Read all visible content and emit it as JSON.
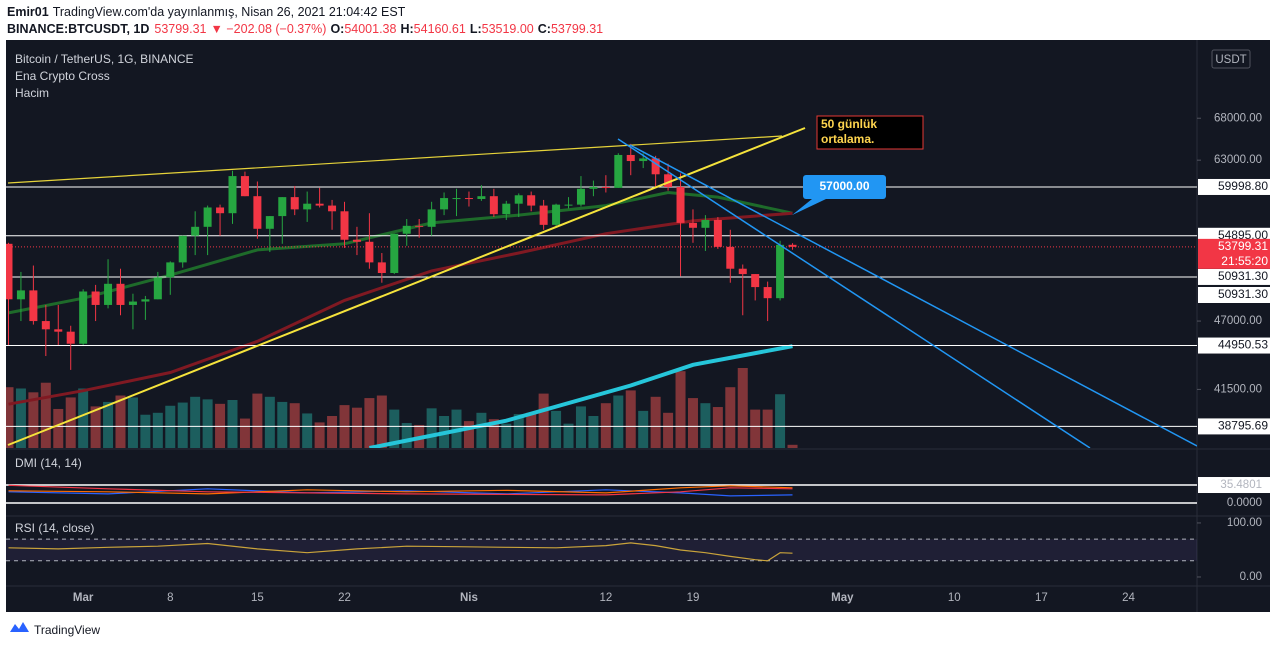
{
  "header": {
    "author": "Emir01",
    "published": "TradingView.com'da yayınlanmış, Nisan 26, 2021 21:04:42 EST",
    "symbol": "BINANCE:BTCUSDT, 1D",
    "last": "53799.31",
    "change": "▼ −202.08 (−0.37%)",
    "ohlc": [
      {
        "label": "O:",
        "value": "54001.38"
      },
      {
        "label": "H:",
        "value": "54160.61"
      },
      {
        "label": "L:",
        "value": "53519.00"
      },
      {
        "label": "C:",
        "value": "53799.31"
      }
    ]
  },
  "footer": {
    "brand": "TradingView"
  },
  "chart_data": [
    {
      "type": "candlestick",
      "title": "Bitcoin / TetherUS, 1G, BINANCE",
      "indicators": [
        "Ena Crypto Cross",
        "Hacim"
      ],
      "currency": "USDT",
      "up_color": "#26a641",
      "down_color": "#f23645",
      "log_scale": true,
      "xlim": [
        -0.2,
        95.5
      ],
      "xticks": [
        {
          "value": 6,
          "label": "Mar"
        },
        {
          "value": 13,
          "label": "8"
        },
        {
          "value": 20,
          "label": "15"
        },
        {
          "value": 27,
          "label": "22"
        },
        {
          "value": 37,
          "label": "Nis"
        },
        {
          "value": 48,
          "label": "12"
        },
        {
          "value": 55,
          "label": "19"
        },
        {
          "value": 67,
          "label": "May"
        },
        {
          "value": 76,
          "label": "10"
        },
        {
          "value": 83,
          "label": "17"
        },
        {
          "value": 90,
          "label": "24"
        }
      ],
      "ylim": [
        37300,
        77700
      ],
      "yticks": [
        {
          "value": 68000,
          "label": "68000.00"
        },
        {
          "value": 63000,
          "label": "63000.00"
        },
        {
          "value": 47000,
          "label": "47000.00"
        },
        {
          "value": 41500,
          "label": "41500.00"
        }
      ],
      "open": [
        54100,
        48900,
        49700,
        47000,
        46300,
        46100,
        45100,
        49600,
        48400,
        50300,
        48400,
        48700,
        48900,
        50900,
        52300,
        54900,
        55800,
        57800,
        57200,
        61200,
        59000,
        55600,
        56900,
        58900,
        57600,
        58200,
        58000,
        57400,
        54500,
        54300,
        52300,
        51300,
        55100,
        55900,
        55800,
        57600,
        58800,
        58800,
        58700,
        59000,
        57100,
        58200,
        59100,
        58000,
        56000,
        58100,
        58100,
        59800,
        60000,
        59900,
        63600,
        62900,
        63200,
        61400,
        60000,
        56200,
        55700,
        56500,
        53800,
        51700,
        51200,
        50000,
        49000,
        54001.38
      ],
      "high": [
        54200,
        51400,
        52000,
        48400,
        48400,
        46600,
        49800,
        50200,
        52600,
        51700,
        49400,
        49200,
        51400,
        52400,
        54900,
        57400,
        58000,
        58100,
        61800,
        61700,
        60600,
        56900,
        58900,
        60100,
        59500,
        59900,
        58600,
        58400,
        55800,
        57200,
        53200,
        55100,
        56600,
        56600,
        58400,
        59400,
        59800,
        59500,
        60200,
        59800,
        58500,
        59300,
        59500,
        58600,
        58200,
        58900,
        61200,
        60700,
        61300,
        63800,
        64900,
        63800,
        63500,
        62600,
        61500,
        57600,
        57000,
        56800,
        55500,
        52100,
        51200,
        50500,
        54400,
        54160.61
      ],
      "low": [
        45000,
        47000,
        46700,
        44100,
        45000,
        43000,
        45000,
        47000,
        48100,
        47500,
        46300,
        47100,
        48900,
        49300,
        51800,
        53000,
        53000,
        54900,
        56100,
        59000,
        54600,
        53300,
        54100,
        57000,
        56300,
        57800,
        55500,
        53700,
        53000,
        51700,
        50400,
        51200,
        53900,
        54700,
        54900,
        57000,
        56900,
        57900,
        58500,
        56800,
        56500,
        56800,
        57400,
        55500,
        55800,
        57700,
        57900,
        59000,
        59400,
        59900,
        61300,
        62100,
        60000,
        59600,
        51000,
        54200,
        53400,
        53600,
        50400,
        47500,
        48800,
        47000,
        48800,
        53519
      ],
      "close": [
        48900,
        49700,
        47000,
        46300,
        46100,
        45100,
        49600,
        48400,
        50300,
        48400,
        48700,
        48900,
        50900,
        52300,
        54900,
        55800,
        57800,
        57200,
        61200,
        59000,
        55600,
        56900,
        58900,
        57600,
        58200,
        58000,
        57400,
        54500,
        54300,
        52300,
        51300,
        55100,
        55900,
        55800,
        57600,
        58800,
        58800,
        58700,
        59000,
        57100,
        58200,
        59100,
        58000,
        56000,
        58100,
        58100,
        59800,
        60000,
        59900,
        63600,
        62900,
        63200,
        61400,
        60000,
        56200,
        55700,
        56500,
        53800,
        51700,
        51200,
        50000,
        49000,
        54000,
        53799.31
      ],
      "volume": {
        "up_color": "#26a69a",
        "down_color": "#ef5350",
        "values": [
          95,
          93,
          87,
          102,
          61,
          79,
          93,
          65,
          72,
          82,
          79,
          52,
          55,
          66,
          71,
          80,
          76,
          69,
          75,
          46,
          85,
          80,
          72,
          70,
          54,
          40,
          50,
          67,
          63,
          78,
          82,
          60,
          39,
          36,
          62,
          50,
          60,
          42,
          55,
          45,
          38,
          53,
          55,
          85,
          58,
          38,
          65,
          50,
          70,
          82,
          90,
          58,
          80,
          55,
          120,
          78,
          70,
          64,
          95,
          125,
          60,
          60,
          84,
          5
        ]
      },
      "moving_averages": [
        {
          "color": "#1e6b2a",
          "x": [
            0,
            6,
            13,
            20,
            27,
            34,
            41,
            48,
            53,
            57,
            63
          ],
          "values": [
            47700,
            49000,
            51100,
            53500,
            54100,
            56200,
            57000,
            58000,
            59400,
            58900,
            57200
          ]
        },
        {
          "color": "#801922",
          "x": [
            0,
            6,
            13,
            20,
            27,
            34,
            41,
            48,
            55,
            63
          ],
          "values": [
            40400,
            41400,
            42800,
            45300,
            48800,
            51500,
            53200,
            55100,
            56400,
            57200
          ]
        },
        {
          "color": "#26c6da",
          "x": [
            29,
            40,
            50,
            55,
            63
          ],
          "values": [
            37300,
            39200,
            41800,
            43400,
            44900
          ]
        }
      ],
      "levels": [
        {
          "value": 59998.8,
          "label": "59998.80"
        },
        {
          "value": 54895,
          "label": "54895.00"
        },
        {
          "value": 50931.3,
          "label": "50931.30"
        },
        {
          "value": 44950.53,
          "label": "44950.53"
        },
        {
          "value": 38795.69,
          "label": "38795.69"
        }
      ],
      "price_tags": [
        "50931.30"
      ],
      "last_price": {
        "value": 53799.31,
        "label": "53799.31",
        "countdown": "21:55:20"
      },
      "annotations": [
        {
          "lines": [
            "50 günlük",
            "ortalama."
          ]
        },
        {
          "value": 57000,
          "label": "57000.00"
        }
      ]
    },
    {
      "type": "line",
      "title": "DMI (14, 14)",
      "ylim": [
        -21.7,
        100.6
      ],
      "yticks": [
        {
          "value": 35.4801,
          "label": "35.4801"
        },
        {
          "value": 0,
          "label": "0.0000"
        }
      ],
      "x": [
        0,
        8,
        16,
        24,
        32,
        40,
        48,
        54,
        58,
        63
      ],
      "series": [
        {
          "color": "#2962ff",
          "values": [
            22,
            18,
            28,
            20,
            24,
            18,
            26,
            20,
            14,
            16
          ]
        },
        {
          "color": "#ff6d00",
          "values": [
            24,
            22,
            18,
            26,
            22,
            25,
            20,
            30,
            34,
            30
          ]
        },
        {
          "color": "#f23645",
          "values": [
            35,
            28,
            22,
            20,
            18,
            17,
            16,
            22,
            30,
            28
          ]
        }
      ]
    },
    {
      "type": "line",
      "title": "RSI (14, close)",
      "ylim": [
        -13,
        111
      ],
      "yticks": [
        {
          "value": 100,
          "label": "100.00"
        },
        {
          "value": 0,
          "label": "0.00"
        }
      ],
      "bands": [
        70,
        30
      ],
      "x": [
        0,
        4,
        8,
        12,
        16,
        20,
        24,
        28,
        32,
        36,
        40,
        44,
        48,
        50,
        52,
        54,
        56,
        58,
        60,
        61,
        62,
        63
      ],
      "series": [
        {
          "color": "#c9a33b",
          "values": [
            54,
            52,
            55,
            57,
            62,
            52,
            45,
            52,
            57,
            56,
            55,
            54,
            58,
            63,
            58,
            50,
            45,
            38,
            32,
            30,
            45,
            44
          ]
        }
      ]
    }
  ]
}
